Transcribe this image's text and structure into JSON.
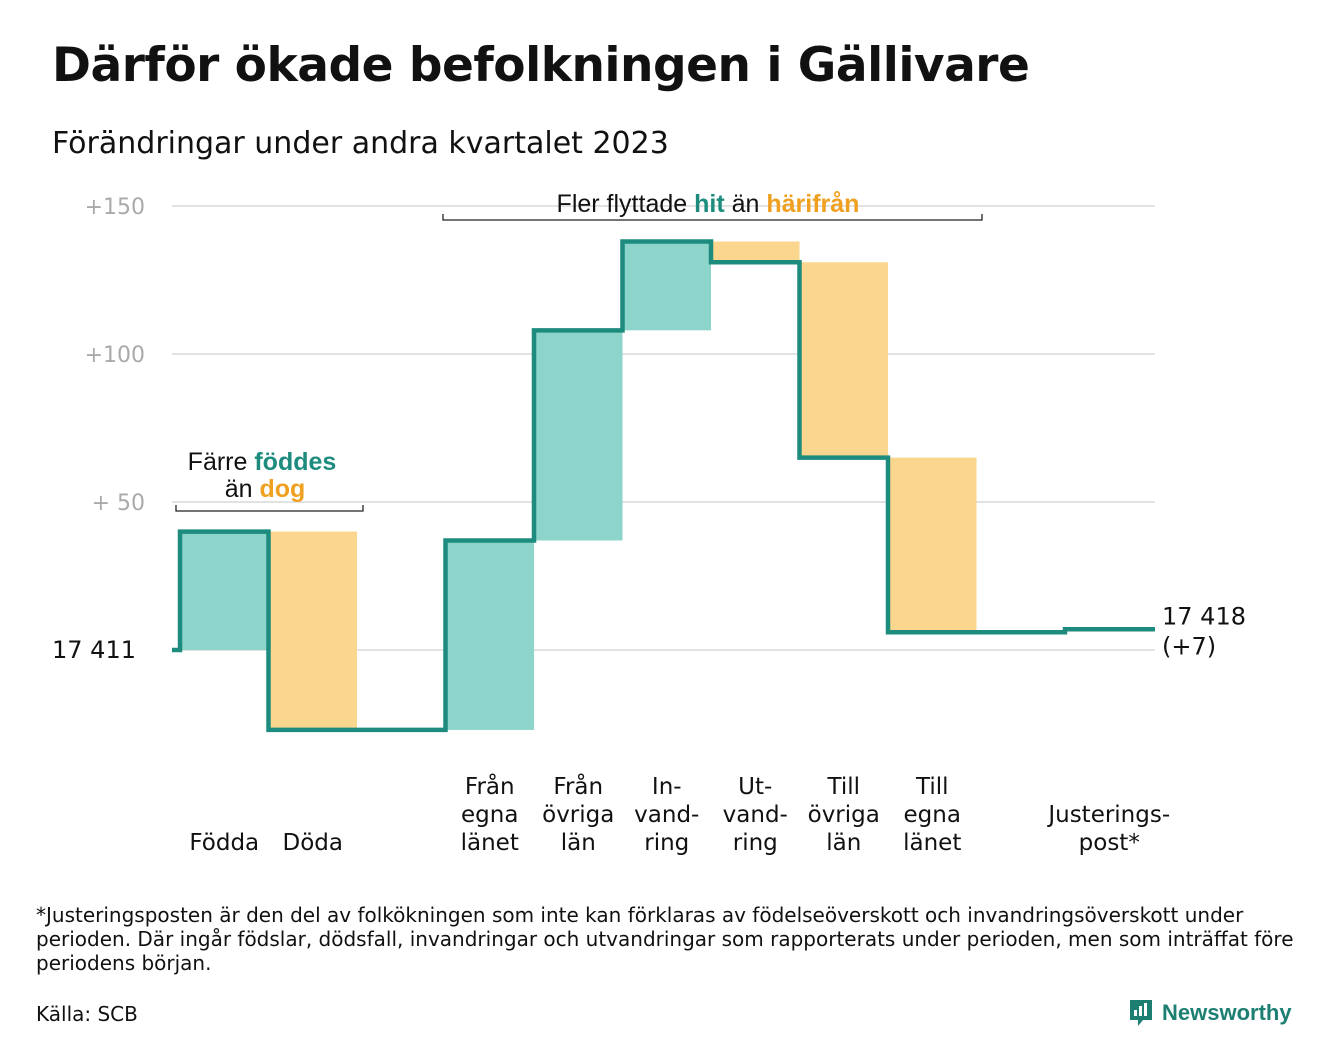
{
  "title": "Därför ökade befolkningen i Gällivare",
  "subtitle": "Förändringar under andra kvartalet 2023",
  "chart_data": {
    "type": "waterfall",
    "baseline": 17411,
    "start_label": "17  411",
    "end_label_line1": "17 418",
    "end_label_line2": "(+7)",
    "ylim": [
      -30,
      155
    ],
    "yticks": [
      {
        "value": 150,
        "label": "+150"
      },
      {
        "value": 100,
        "label": "+100"
      },
      {
        "value": 50,
        "label": "+  50"
      }
    ],
    "grid": true,
    "steps": [
      {
        "category": [
          "Födda"
        ],
        "value": 40,
        "kind": "in"
      },
      {
        "category": [
          "Döda"
        ],
        "value": -67,
        "kind": "out"
      },
      {
        "category": [],
        "value": 0,
        "kind": "gap"
      },
      {
        "category": [
          "Från",
          "egna",
          "länet"
        ],
        "value": 64,
        "kind": "in"
      },
      {
        "category": [
          "Från",
          "övriga",
          "län"
        ],
        "value": 71,
        "kind": "in"
      },
      {
        "category": [
          "In-",
          "vand-",
          "ring"
        ],
        "value": 30,
        "kind": "in"
      },
      {
        "category": [
          "Ut-",
          "vand-",
          "ring"
        ],
        "value": -7,
        "kind": "out"
      },
      {
        "category": [
          "Till",
          "övriga",
          "län"
        ],
        "value": -66,
        "kind": "out"
      },
      {
        "category": [
          "Till",
          "egna",
          "länet"
        ],
        "value": -59,
        "kind": "out"
      },
      {
        "category": [],
        "value": 0,
        "kind": "gap"
      },
      {
        "category": [
          "Justerings-",
          "post*"
        ],
        "value": 1,
        "kind": "adjust"
      }
    ],
    "annotations": [
      {
        "id": "births",
        "line1_plain": "Färre ",
        "line1_bold": "föddes",
        "line2_plain": "än ",
        "line2_bold": "dog"
      },
      {
        "id": "moves",
        "plain1": "Fler flyttade ",
        "bold1": "hit",
        "plain2": " än ",
        "bold2": "härifrån"
      }
    ],
    "colors": {
      "in_fill": "#8dd5cb",
      "out_fill": "#fad68e",
      "line": "#1d8c7e",
      "in_text": "#1d8c7e",
      "out_text": "#f0a020",
      "grid": "#e2e2e2",
      "tick_text": "#aaaaaa"
    }
  },
  "footnote": "*Justeringsposten är den del av folkökningen som inte kan förklaras av födelseöverskott och invandringsöverskott under perioden. Där ingår födslar, dödsfall, invandringar och utvandringar som rapporterats under perioden, men som inträffat före periodens början.",
  "source": "Källa: SCB",
  "logo_text": "Newsworthy"
}
